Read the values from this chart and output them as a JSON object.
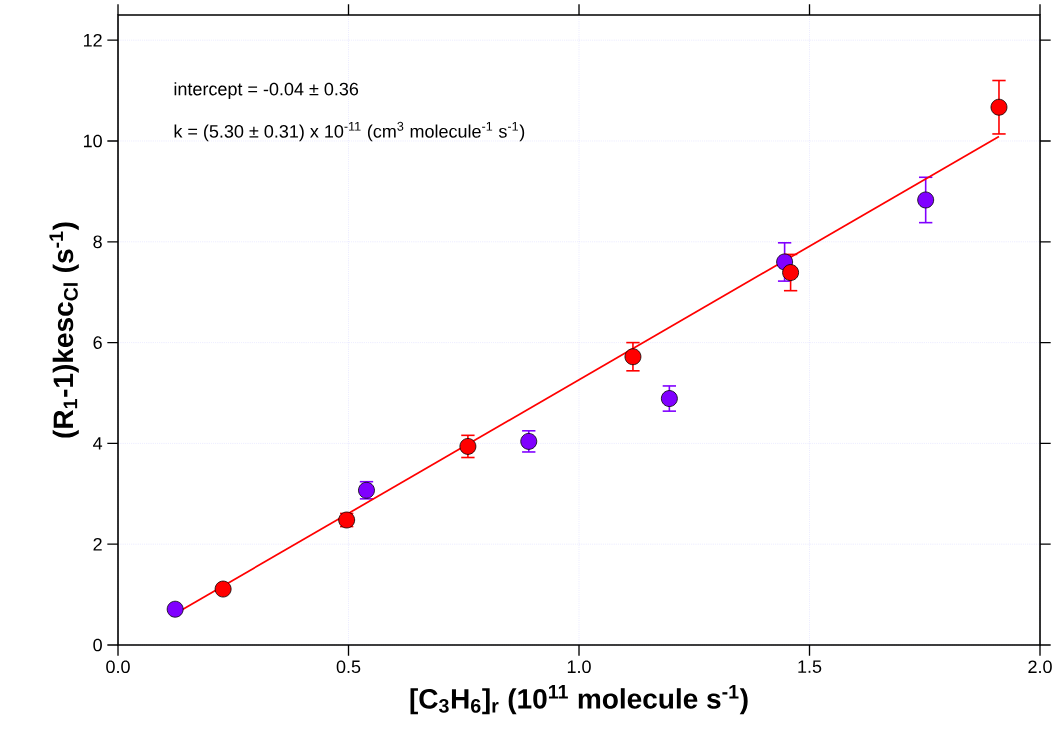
{
  "chart_data": {
    "type": "scatter",
    "xlabel": "[C$_{3}$H$_{6}$]$_{r}$ (10$^{11}$ molecule s$^{-1}$)",
    "ylabel": "(R$_{1}$-1)kesc$_{Cl}$ (s$^{-1}$)",
    "annotations": [
      "intercept = -0.04 ± 0.36",
      "k = (5.30 ± 0.31) x 10$^{-11}$ (cm$^{3}$ molecule$^{-1}$ s$^{-1}$)"
    ],
    "xlim": [
      0,
      2.0
    ],
    "ylim": [
      0,
      12.5
    ],
    "xticks": [
      {
        "value": 0,
        "label": "0.0"
      },
      {
        "value": 0.5,
        "label": "0.5"
      },
      {
        "value": 1.0,
        "label": "1.0"
      },
      {
        "value": 1.5,
        "label": "1.5"
      },
      {
        "value": 2.0,
        "label": "2.0"
      }
    ],
    "yticks": [
      0,
      2,
      4,
      6,
      8,
      10,
      12
    ],
    "grid": true,
    "marker": "circle",
    "series": [
      {
        "type": "line",
        "color": "#ff0000",
        "marker": "none",
        "line_style": "solid",
        "x": [
          0.124,
          1.911
        ],
        "values": [
          0.62,
          10.09
        ]
      },
      {
        "color": "#8000ff",
        "x": [
          0.124,
          0.539,
          0.891,
          1.196,
          1.446,
          1.752
        ],
        "values": [
          0.71,
          3.07,
          4.04,
          4.89,
          7.6,
          8.83
        ],
        "errors": [
          null,
          0.17,
          0.21,
          0.25,
          0.38,
          0.45
        ]
      },
      {
        "color": "#ff0000",
        "x": [
          0.228,
          0.496,
          0.759,
          1.117,
          1.459,
          1.911
        ],
        "values": [
          1.11,
          2.48,
          3.94,
          5.72,
          7.39,
          10.67
        ],
        "errors": [
          null,
          0.13,
          0.22,
          0.28,
          0.36,
          0.53
        ]
      }
    ]
  }
}
